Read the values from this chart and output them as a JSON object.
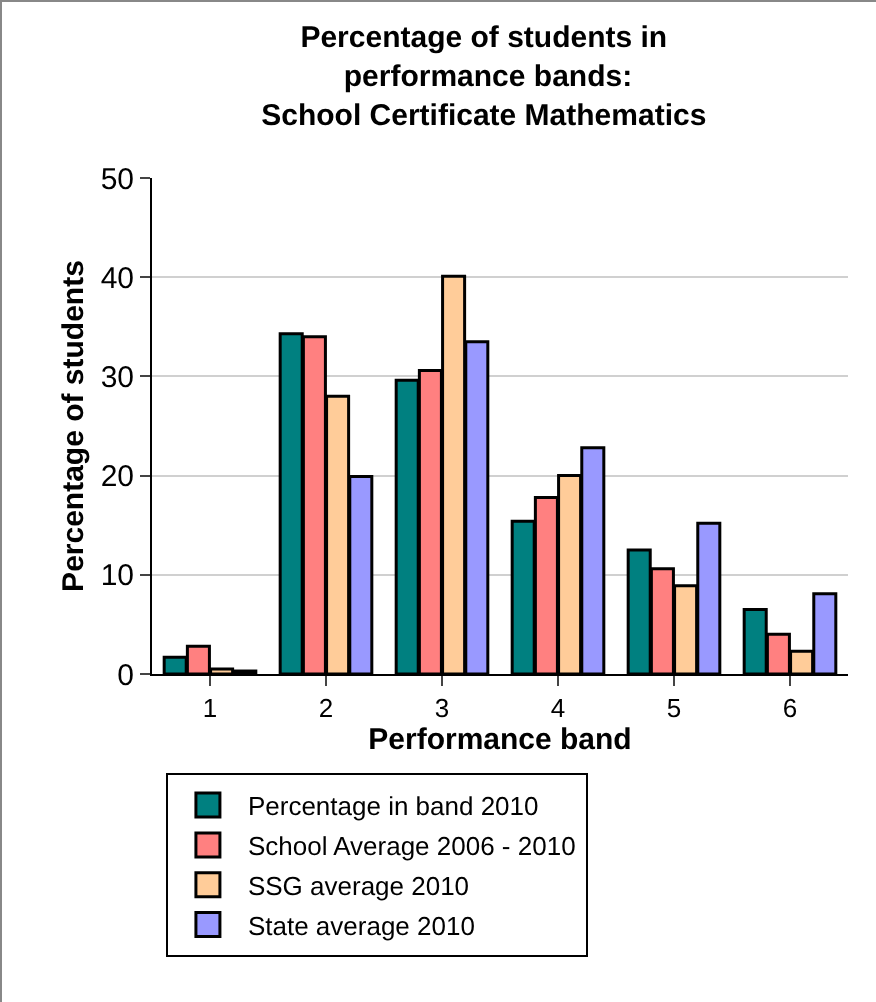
{
  "chart_data": {
    "type": "bar",
    "title": "Percentage of students in performance bands: School Certificate Mathematics",
    "xlabel": "Performance band",
    "ylabel": "Percentage of students",
    "categories": [
      "1",
      "2",
      "3",
      "4",
      "5",
      "6"
    ],
    "series": [
      {
        "name": "Percentage in band 2010",
        "color": "#008080",
        "values": [
          1.7,
          34.3,
          29.6,
          15.4,
          12.5,
          6.5
        ]
      },
      {
        "name": "School Average 2006 - 2010",
        "color": "#ff8080",
        "values": [
          2.8,
          34,
          30.6,
          17.8,
          10.6,
          4
        ]
      },
      {
        "name": "SSG average 2010",
        "color": "#ffcc99",
        "values": [
          0.5,
          28,
          40.1,
          20,
          8.9,
          2.3
        ]
      },
      {
        "name": "State average 2010",
        "color": "#9999ff",
        "values": [
          0.3,
          19.9,
          33.5,
          22.8,
          15.2,
          8.1
        ]
      }
    ],
    "ylim": [
      0,
      50
    ],
    "yticks": [
      0,
      10,
      20,
      30,
      40,
      50
    ],
    "grid": "y",
    "legend": "bottom"
  }
}
